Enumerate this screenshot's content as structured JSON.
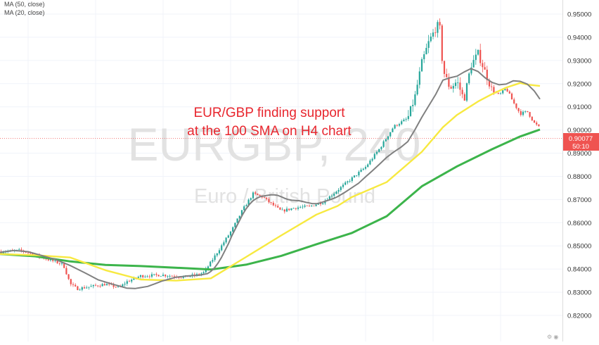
{
  "legend": {
    "ma50": "MA (50, close)",
    "ma20": "MA (20, close)"
  },
  "watermark": {
    "symbol": "EURGBP",
    "interval": "240",
    "description": "Euro / British Pound"
  },
  "annotation": {
    "line1": "EUR/GBP finding support",
    "line2": "at the 100 SMA on H4 chart"
  },
  "price_label": {
    "price": "0.90077",
    "countdown": "50:10"
  },
  "colors": {
    "up": "#26a69a",
    "down": "#ef5350",
    "ma20": "#808080",
    "ma50": "#f7e940",
    "ma100": "#3cb44b",
    "annotation": "#e8262e",
    "price_tag": "#ef5350"
  },
  "chart_data": {
    "type": "line",
    "title": "",
    "ylim": [
      0.82,
      0.952
    ],
    "y_ticks": [
      "0.95000",
      "0.94000",
      "0.93000",
      "0.92000",
      "0.91000",
      "0.90000",
      "0.89000",
      "0.88000",
      "0.87000",
      "0.86000",
      "0.85000",
      "0.84000",
      "0.83000",
      "0.82000"
    ],
    "x_count": 240,
    "series": [
      {
        "name": "MA (20, close)",
        "key": "ma20",
        "x": [
          0,
          20,
          40,
          60,
          80,
          100,
          120,
          140,
          160,
          180,
          192,
          200,
          210,
          220,
          230,
          240,
          250,
          260,
          265,
          275,
          285,
          295,
          300,
          305,
          310,
          315,
          320,
          325,
          330,
          335,
          340,
          345,
          350,
          355,
          360,
          365,
          370,
          375,
          380,
          385,
          390,
          395,
          400,
          405,
          410,
          415,
          420,
          425,
          430,
          435,
          440,
          445,
          450,
          455,
          460,
          465,
          470,
          475,
          480,
          490,
          500,
          510,
          520,
          530,
          540,
          550,
          560,
          570,
          580,
          590,
          600,
          610,
          620,
          630,
          640,
          650,
          660,
          670,
          680,
          690,
          700,
          710,
          720,
          730,
          740,
          750,
          760,
          768
        ],
        "y": [
          0.8472,
          0.848,
          0.8475,
          0.8458,
          0.844,
          0.8415,
          0.8385,
          0.8353,
          0.8335,
          0.8318,
          0.8316,
          0.832,
          0.8325,
          0.8336,
          0.8348,
          0.8356,
          0.8365,
          0.8368,
          0.837,
          0.8372,
          0.8374,
          0.838,
          0.839,
          0.8405,
          0.8425,
          0.845,
          0.848,
          0.851,
          0.8545,
          0.8575,
          0.8605,
          0.8635,
          0.866,
          0.868,
          0.8695,
          0.8705,
          0.8712,
          0.8715,
          0.8718,
          0.872,
          0.872,
          0.8718,
          0.8712,
          0.8705,
          0.87,
          0.8697,
          0.8696,
          0.8695,
          0.8692,
          0.8688,
          0.8685,
          0.8682,
          0.8682,
          0.8685,
          0.869,
          0.8695,
          0.87,
          0.8705,
          0.8712,
          0.873,
          0.875,
          0.877,
          0.8798,
          0.8825,
          0.8853,
          0.8882,
          0.8905,
          0.8925,
          0.895,
          0.9,
          0.9055,
          0.9105,
          0.9155,
          0.9215,
          0.9225,
          0.9232,
          0.925,
          0.9265,
          0.9252,
          0.9225,
          0.9205,
          0.9195,
          0.9198,
          0.9212,
          0.921,
          0.9198,
          0.9168,
          0.9133
        ]
      },
      {
        "name": "MA (50, close)",
        "key": "ma50",
        "x": [
          0,
          50,
          100,
          150,
          200,
          250,
          300,
          350,
          400,
          450,
          480,
          500,
          550,
          600,
          630,
          650,
          680,
          700,
          720,
          740,
          750,
          768
        ],
        "y": [
          0.8465,
          0.846,
          0.845,
          0.8395,
          0.8355,
          0.835,
          0.836,
          0.8452,
          0.8545,
          0.8635,
          0.8672,
          0.871,
          0.8775,
          0.8906,
          0.9012,
          0.9065,
          0.9123,
          0.9155,
          0.9183,
          0.9203,
          0.9196,
          0.919
        ]
      },
      {
        "name": "100 SMA",
        "key": "ma100",
        "x": [
          0,
          50,
          100,
          150,
          200,
          250,
          300,
          350,
          400,
          450,
          500,
          550,
          600,
          650,
          700,
          740,
          768
        ],
        "y": [
          0.8465,
          0.8455,
          0.8433,
          0.8418,
          0.8413,
          0.8406,
          0.8398,
          0.8419,
          0.8457,
          0.8507,
          0.8555,
          0.8628,
          0.8757,
          0.8843,
          0.8917,
          0.8972,
          0.9002
        ]
      }
    ]
  }
}
